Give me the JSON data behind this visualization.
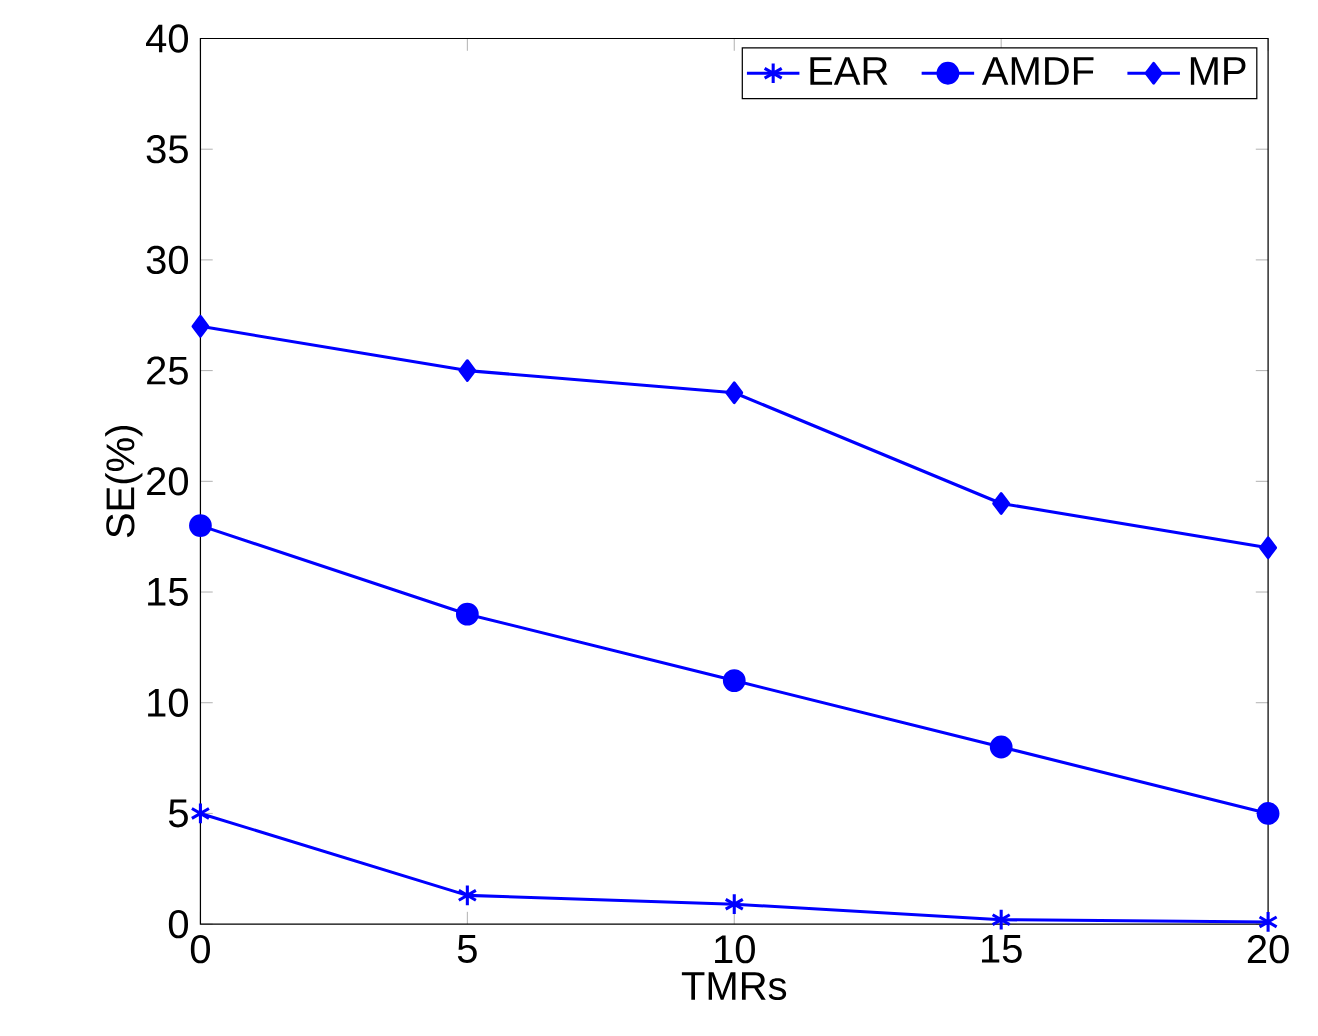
{
  "chart_data": {
    "type": "line",
    "xlabel": "TMRs",
    "ylabel": "SE(%)",
    "x": [
      0,
      5,
      10,
      15,
      20
    ],
    "series": [
      {
        "name": "EAR",
        "color": "#0000ff",
        "marker": "cross",
        "values": [
          5,
          1.3,
          0.9,
          0.2,
          0.1
        ]
      },
      {
        "name": "AMDF",
        "color": "#0000ff",
        "marker": "circle",
        "values": [
          18,
          14,
          11,
          8,
          5
        ]
      },
      {
        "name": "MP",
        "color": "#0000ff",
        "marker": "diamond",
        "values": [
          27,
          25,
          24,
          19,
          17
        ]
      }
    ],
    "xlim": [
      0,
      20
    ],
    "ylim": [
      0,
      40
    ],
    "xticks": [
      0,
      5,
      10,
      15,
      20
    ],
    "yticks": [
      0,
      5,
      10,
      15,
      20,
      25,
      30,
      35,
      40
    ],
    "grid": false,
    "legend": "top right",
    "line_style": "solid"
  }
}
